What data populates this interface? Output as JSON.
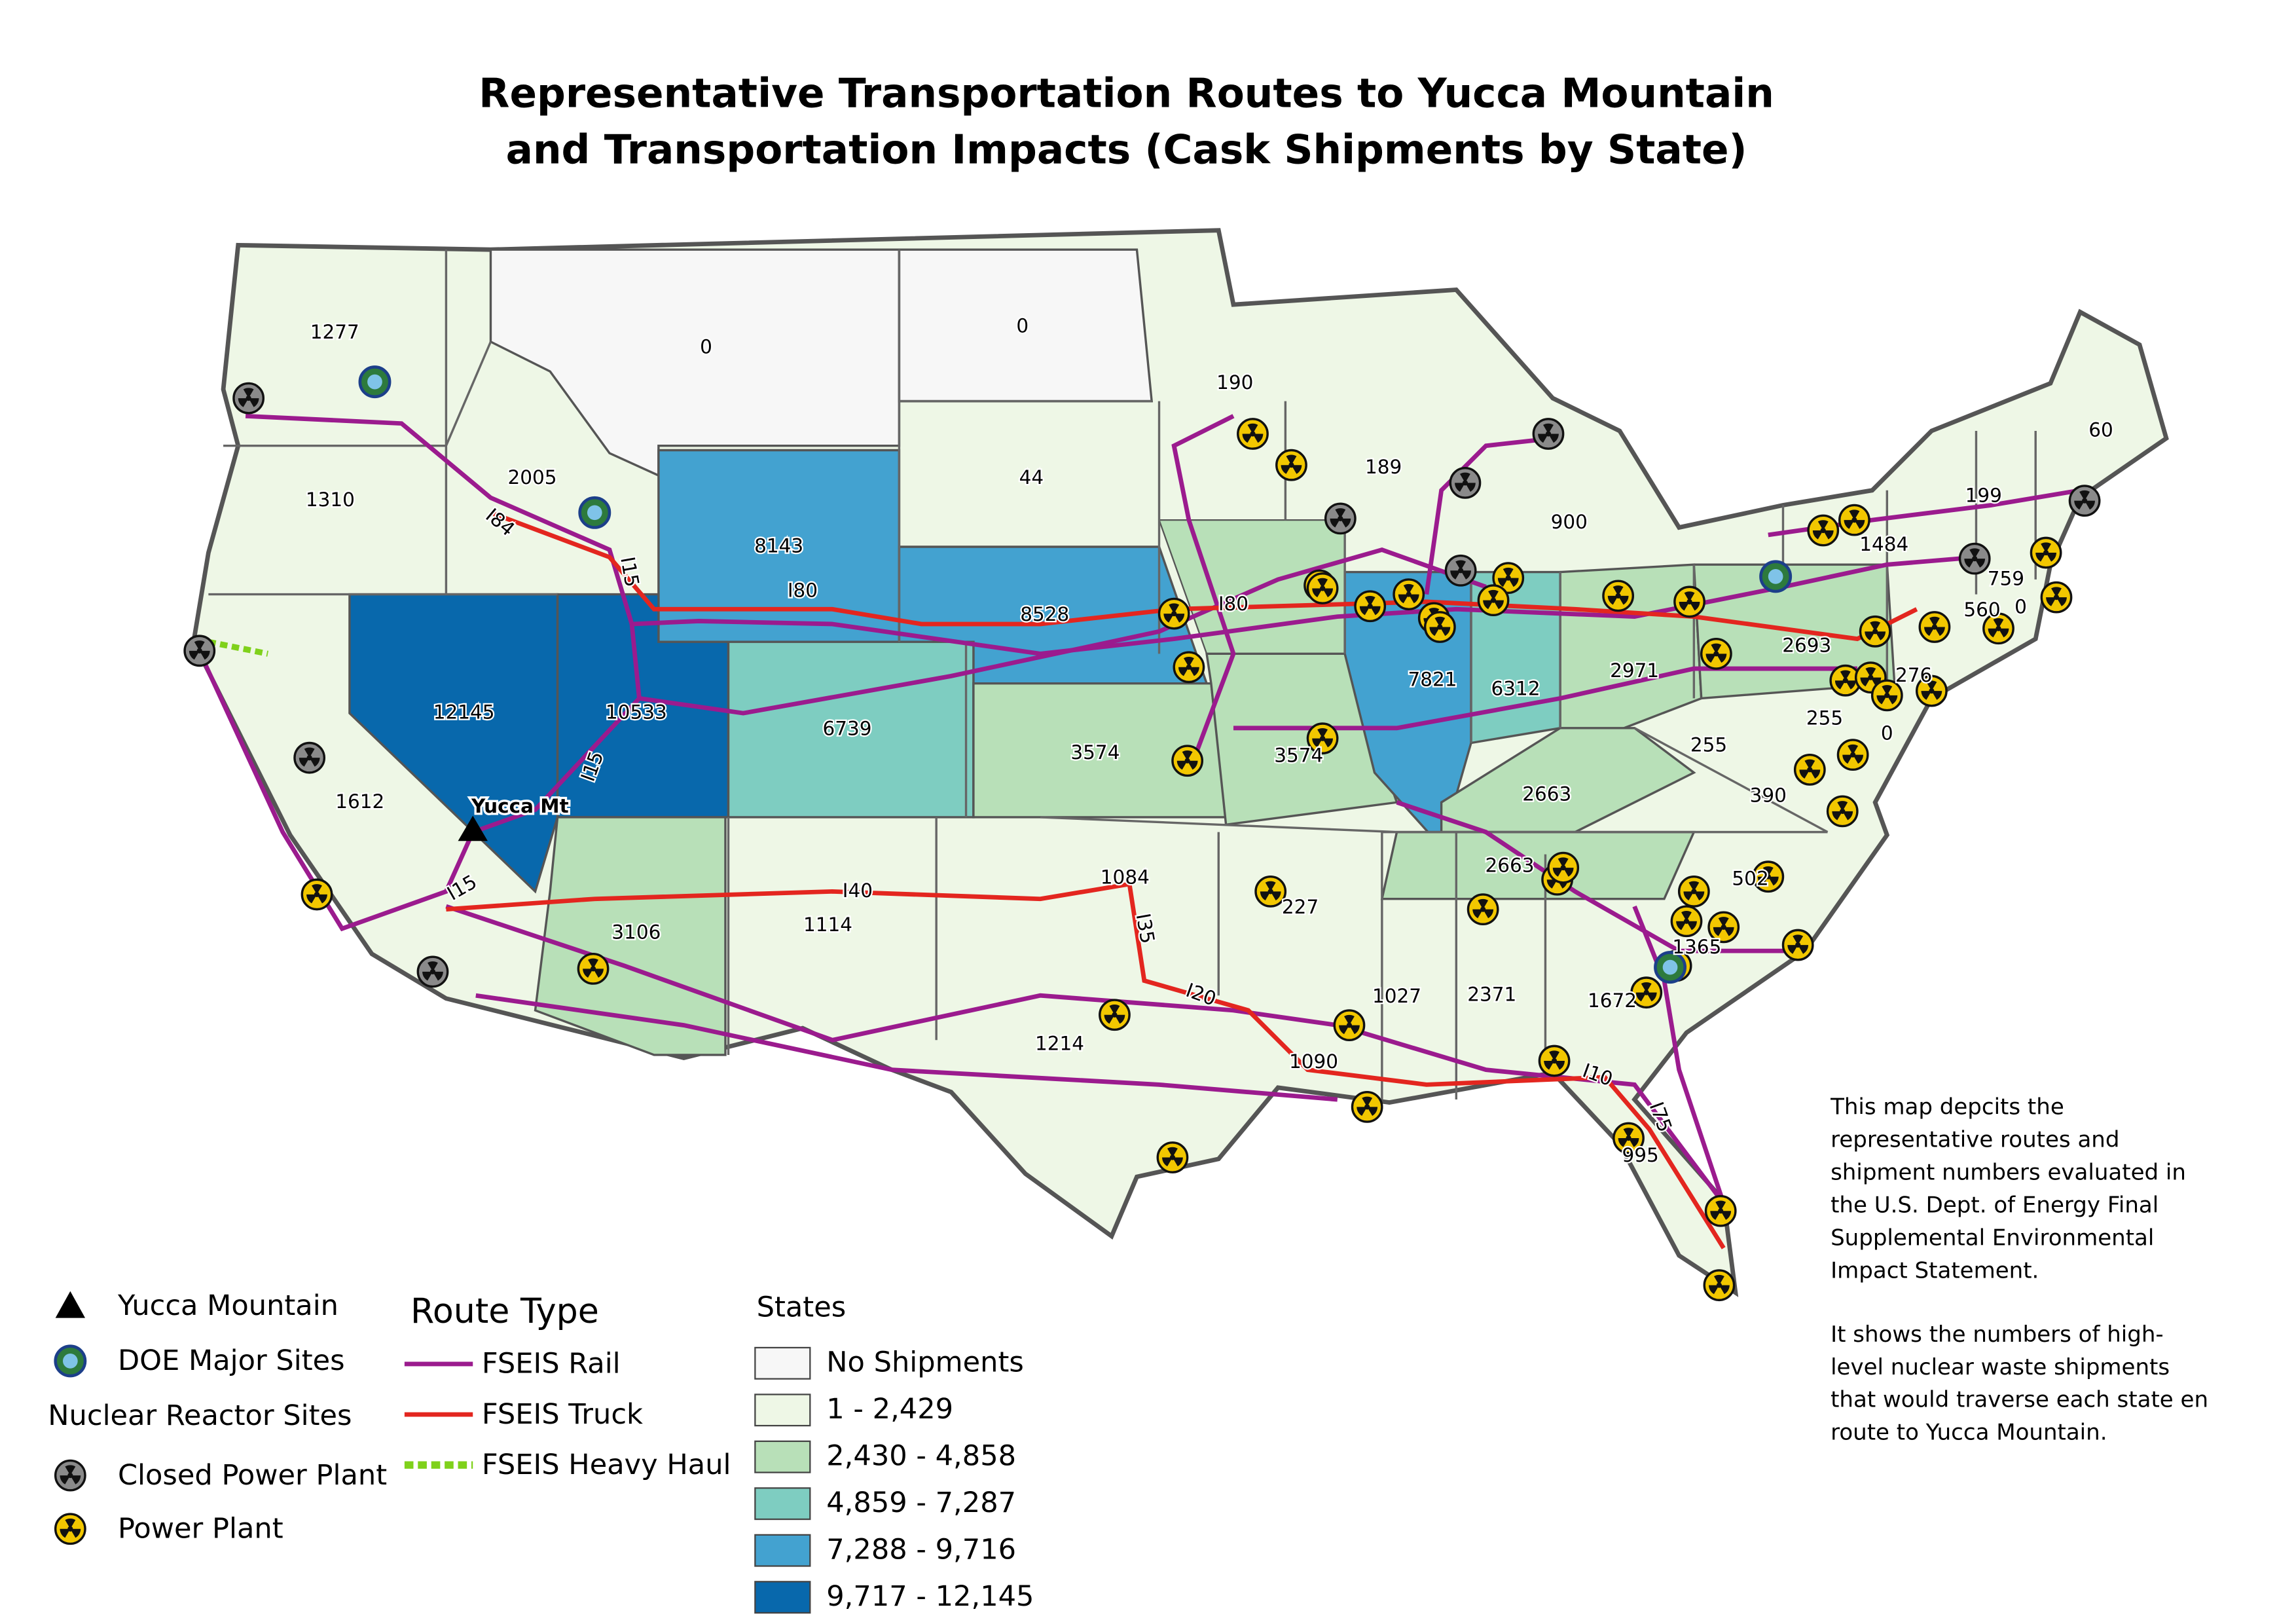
{
  "title": [
    "Representative Transportation Routes to Yucca Mountain",
    "and Transportation Impacts (Cask Shipments by State)"
  ],
  "map": {
    "site_label": "Yucca Mt",
    "states": [
      {
        "label": "1277"
      },
      {
        "label": "1310"
      },
      {
        "label": "2005"
      },
      {
        "label": "0",
        "color": "#f7f7f7"
      },
      {
        "label": "0",
        "color": "#f7f7f7"
      },
      {
        "label": "44"
      },
      {
        "label": "190"
      },
      {
        "label": "189"
      },
      {
        "label": "900"
      },
      {
        "label": "8143",
        "color": "#43a2d0"
      },
      {
        "label": "8528",
        "color": "#43a2d0"
      },
      {
        "label": "12145",
        "color": "#0868ac"
      },
      {
        "label": "10533",
        "color": "#0868ac"
      },
      {
        "label": "6739",
        "color": "#7ecdc1"
      },
      {
        "label": "3574",
        "color": "#b8e0b8"
      },
      {
        "label": "3574",
        "color": "#b8e0b8"
      },
      {
        "label": "7821",
        "color": "#43a2d0"
      },
      {
        "label": "6312",
        "color": "#7ecdc1"
      },
      {
        "label": "2971",
        "color": "#b8e0b8"
      },
      {
        "label": "2693",
        "color": "#b8e0b8"
      },
      {
        "label": "1484"
      },
      {
        "label": "199"
      },
      {
        "label": "60"
      },
      {
        "label": "759"
      },
      {
        "label": "560"
      },
      {
        "label": "0"
      },
      {
        "label": "276"
      },
      {
        "label": "0"
      },
      {
        "label": "255"
      },
      {
        "label": "255"
      },
      {
        "label": "390"
      },
      {
        "label": "2663",
        "color": "#b8e0b8"
      },
      {
        "label": "2663",
        "color": "#b8e0b8"
      },
      {
        "label": "502"
      },
      {
        "label": "1365"
      },
      {
        "label": "1672"
      },
      {
        "label": "2371"
      },
      {
        "label": "1027"
      },
      {
        "label": "1090"
      },
      {
        "label": "227"
      },
      {
        "label": "1084"
      },
      {
        "label": "1214"
      },
      {
        "label": "1114"
      },
      {
        "label": "3106",
        "color": "#b8e0b8"
      },
      {
        "label": "1612"
      },
      {
        "label": "995"
      }
    ],
    "route_labels": [
      "I84",
      "I15",
      "I80",
      "I80",
      "I15",
      "I15",
      "I40",
      "I35",
      "I20",
      "I10",
      "I75"
    ]
  },
  "legend": {
    "sites": [
      "Yucca Mountain",
      "DOE Major Sites"
    ],
    "reactor_heading": "Nuclear Reactor Sites",
    "reactors": [
      "Closed Power Plant",
      "Power Plant"
    ],
    "route_heading": "Route Type",
    "routes": [
      {
        "name": "FSEIS Rail",
        "color": "#9b1b8e"
      },
      {
        "name": "FSEIS Truck",
        "color": "#e3261f"
      },
      {
        "name": "FSEIS Heavy Haul",
        "color": "#7fd11b"
      }
    ],
    "states_heading": "States",
    "bins": [
      {
        "label": "No Shipments",
        "color": "#f7f7f7"
      },
      {
        "label": "1 - 2,429",
        "color": "#eef7e6"
      },
      {
        "label": "2,430 - 4,858",
        "color": "#b8e0b8"
      },
      {
        "label": "4,859 - 7,287",
        "color": "#7ecdc1"
      },
      {
        "label": "7,288 - 9,716",
        "color": "#43a2d0"
      },
      {
        "label": "9,717 - 12,145",
        "color": "#0868ac"
      }
    ]
  },
  "note": [
    "This map depcits the",
    "representative routes and",
    "shipment numbers evaluated in",
    "the U.S. Dept. of Energy Final",
    "Supplemental Environmental",
    "Impact Statement.",
    "It shows the numbers of high-",
    "level nuclear waste shipments",
    "that would traverse each state en",
    "route to Yucca Mountain."
  ]
}
